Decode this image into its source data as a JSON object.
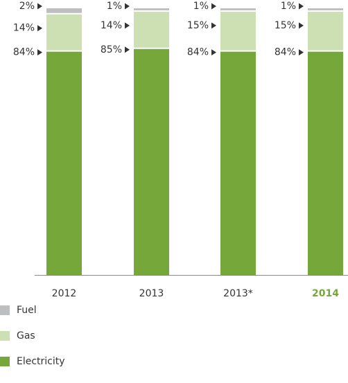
{
  "chart_data": {
    "type": "stacked_bar",
    "categories": [
      "2012",
      "2013",
      "2013*",
      "2014"
    ],
    "highlight": 3,
    "highlight_color": "#76a73a",
    "ylim": [
      0,
      100
    ],
    "series": [
      {
        "name": "Electricity",
        "color": "#76a73a",
        "values": [
          84,
          85,
          84,
          84
        ],
        "value_labels": [
          "84%",
          "85%",
          "84%",
          "84%"
        ]
      },
      {
        "name": "Gas",
        "color": "#cde0b4",
        "values": [
          14,
          14,
          15,
          15
        ],
        "value_labels": [
          "14%",
          "14%",
          "15%",
          "15%"
        ]
      },
      {
        "name": "Fuel",
        "color": "#bcbec0",
        "values": [
          2,
          1,
          1,
          1
        ],
        "value_labels": [
          "2%",
          "1%",
          "1%",
          "1%"
        ]
      }
    ]
  }
}
